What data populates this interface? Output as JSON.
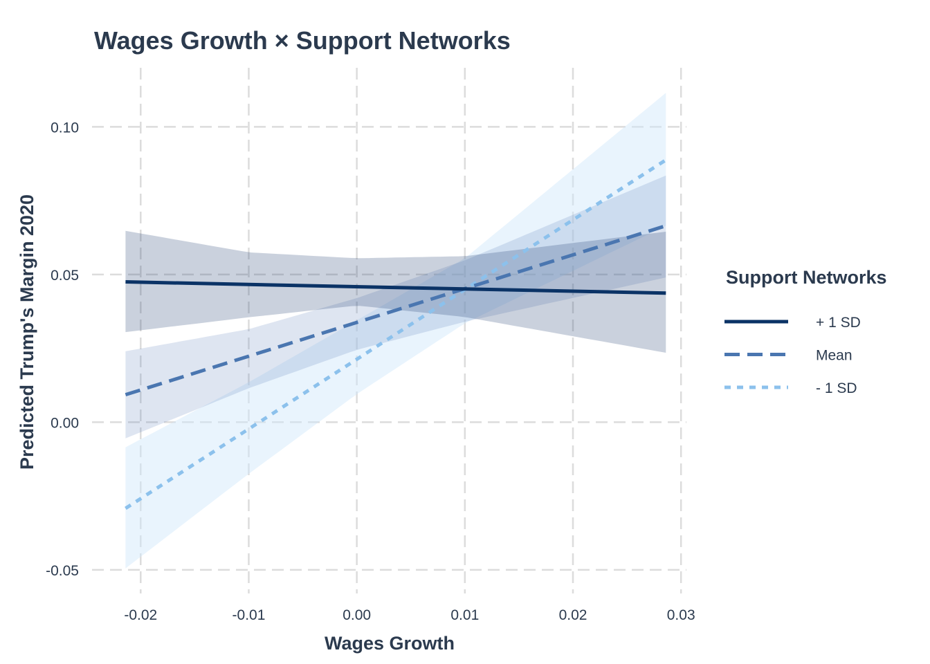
{
  "chart_data": {
    "type": "line",
    "title": "Wages Growth × Support Networks",
    "xlabel": "Wages Growth",
    "ylabel": "Predicted Trump's Margin 2020",
    "xlim": [
      -0.0245,
      0.0305
    ],
    "ylim": [
      -0.058,
      0.12
    ],
    "x_ticks": [
      -0.02,
      -0.01,
      0.0,
      0.01,
      0.02,
      0.03
    ],
    "x_tick_labels": [
      "-0.02",
      "-0.01",
      "0.00",
      "0.01",
      "0.02",
      "0.03"
    ],
    "y_ticks": [
      -0.05,
      0.0,
      0.05,
      0.1
    ],
    "y_tick_labels": [
      "-0.05",
      "0.00",
      "0.05",
      "0.10"
    ],
    "grid": true,
    "legend": {
      "title": "Support Networks",
      "position": "right"
    },
    "series": [
      {
        "name": "+ 1 SD",
        "color": "#0b3366",
        "line_style": "solid",
        "ribbon_color": "#213f72",
        "x": [
          -0.0214,
          0.0286
        ],
        "y": [
          0.0475,
          0.0437
        ],
        "band_x": [
          -0.0214,
          -0.01,
          0.0,
          0.01,
          0.0286
        ],
        "band_lower": [
          0.0305,
          0.0355,
          0.0395,
          0.0356,
          0.0235
        ],
        "band_upper": [
          0.0648,
          0.0575,
          0.0555,
          0.0562,
          0.0645
        ]
      },
      {
        "name": "Mean",
        "color": "#4a76b0",
        "line_style": "dashed",
        "ribbon_color": "#5a7fb8",
        "x": [
          -0.0214,
          0.0286
        ],
        "y": [
          0.0093,
          0.0665
        ],
        "band_x": [
          -0.0214,
          -0.01,
          0.0,
          0.01,
          0.0286
        ],
        "band_lower": [
          -0.0055,
          0.0115,
          0.0245,
          0.034,
          0.049
        ],
        "band_upper": [
          0.024,
          0.0315,
          0.042,
          0.0548,
          0.0835
        ]
      },
      {
        "name": "- 1 SD",
        "color": "#8cc1ec",
        "line_style": "dotted",
        "ribbon_color": "#cfe6fb",
        "x": [
          -0.0214,
          0.0286
        ],
        "y": [
          -0.0292,
          0.0888
        ],
        "band_x": [
          -0.0214,
          -0.01,
          0.0,
          0.01,
          0.0286
        ],
        "band_lower": [
          -0.0495,
          -0.0175,
          0.0095,
          0.0335,
          0.0665
        ],
        "band_upper": [
          -0.0085,
          0.0135,
          0.0345,
          0.0555,
          0.1115
        ]
      }
    ]
  }
}
